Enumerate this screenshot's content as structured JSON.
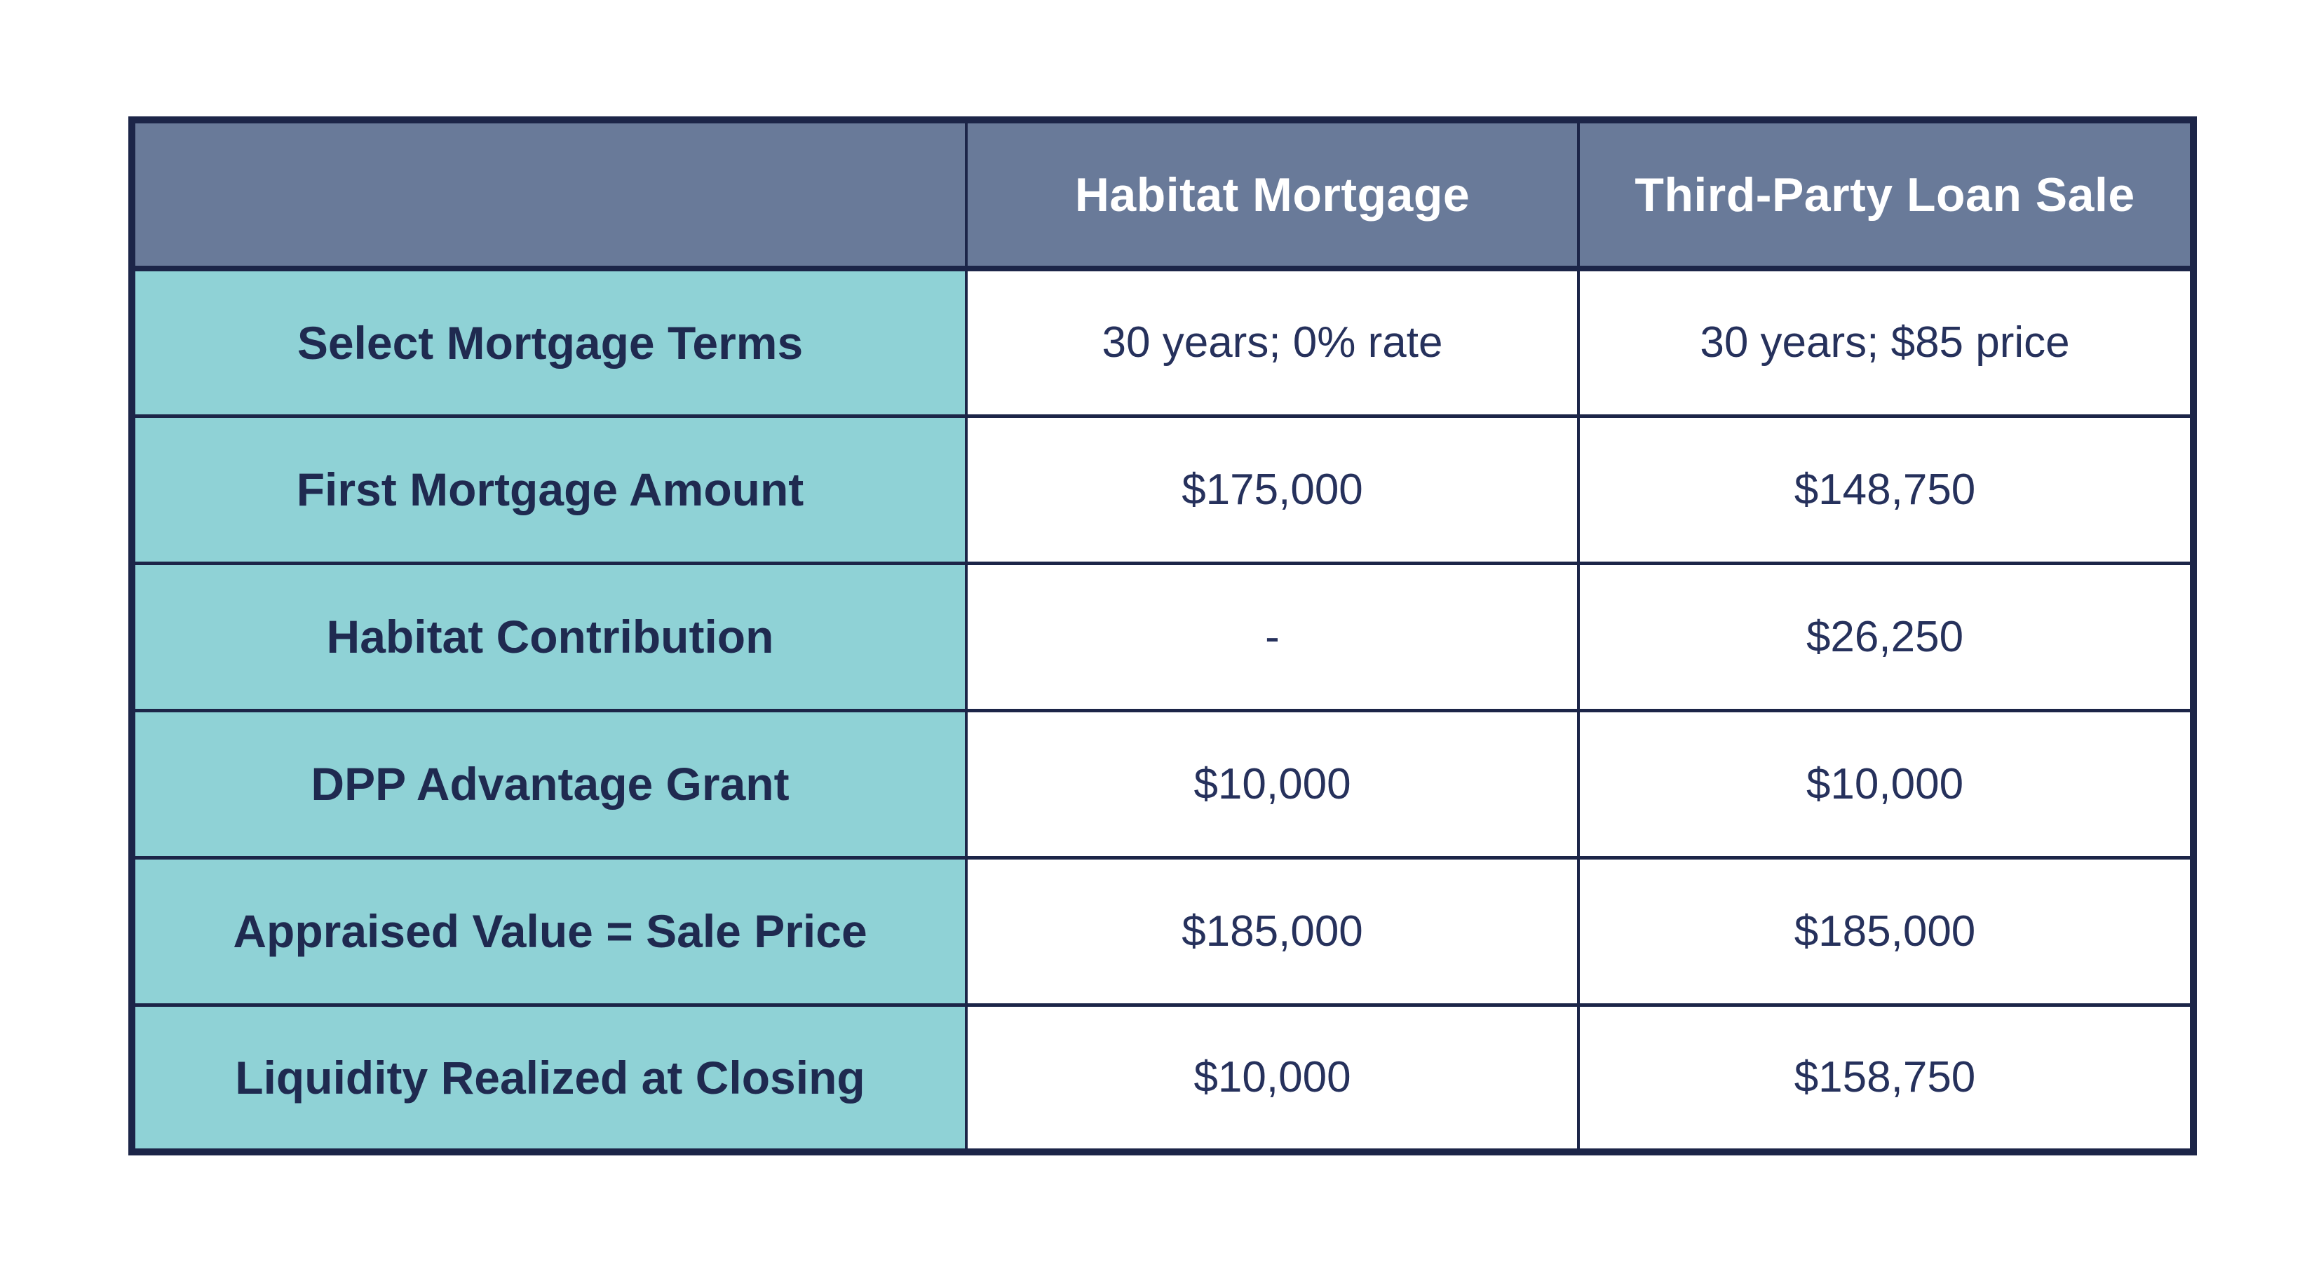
{
  "chart_data": {
    "type": "table",
    "title": "",
    "columns": [
      "",
      "Habitat Mortgage",
      "Third-Party Loan Sale"
    ],
    "rows": [
      {
        "label": "Select Mortgage Terms",
        "values": [
          "30 years; 0% rate",
          "30 years; $85 price"
        ]
      },
      {
        "label": "First Mortgage Amount",
        "values": [
          "$175,000",
          "$148,750"
        ]
      },
      {
        "label": "Habitat Contribution",
        "values": [
          "-",
          "$26,250"
        ]
      },
      {
        "label": "DPP Advantage Grant",
        "values": [
          "$10,000",
          "$10,000"
        ]
      },
      {
        "label": "Appraised Value = Sale Price",
        "values": [
          "$185,000",
          "$185,000"
        ]
      },
      {
        "label": "Liquidity Realized at Closing",
        "values": [
          "$10,000",
          "$158,750"
        ]
      }
    ],
    "colors": {
      "header_background": "#697A99",
      "header_text": "#FFFFFF",
      "row_label_background": "#8FD2D6",
      "value_cell_background": "#FFFFFF",
      "text_navy": "#26315C",
      "border_navy": "#1C2548",
      "page_background": "#FFFFFF"
    },
    "layout": {
      "grid": "on",
      "outer_border": "thick",
      "cell_alignment": "center"
    }
  }
}
